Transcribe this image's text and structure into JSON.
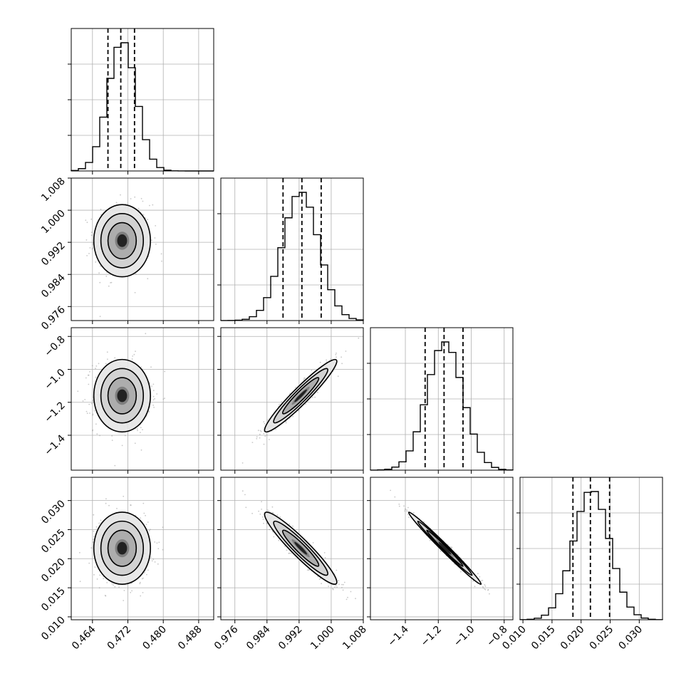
{
  "chart_data": {
    "type": "corner",
    "parameters": [
      {
        "index": 0,
        "mean": 0.4707,
        "std": 0.0032,
        "lim": [
          0.4592,
          0.4914
        ],
        "ticks": [
          "0.464",
          "0.472",
          "0.480",
          "0.488"
        ],
        "quantiles": [
          0.4675,
          0.4704,
          0.4735
        ]
      },
      {
        "index": 1,
        "mean": 0.9924,
        "std": 0.0045,
        "lim": [
          0.9725,
          1.008
        ],
        "ticks": [
          "0.976",
          "0.984",
          "0.992",
          "1.000",
          "1.008"
        ],
        "quantiles": [
          0.988,
          0.9927,
          0.9975
        ]
      },
      {
        "index": 2,
        "mean": -1.16,
        "std": 0.11,
        "lim": [
          -1.612,
          -0.747
        ],
        "ticks": [
          "−1.4",
          "−1.2",
          "−1.0",
          "−0.8"
        ],
        "quantiles": [
          -1.28,
          -1.165,
          -1.05
        ]
      },
      {
        "index": 3,
        "mean": 0.0218,
        "std": 0.0031,
        "lim": [
          0.0095,
          0.034
        ],
        "ticks": [
          "0.010",
          "0.015",
          "0.020",
          "0.025",
          "0.030"
        ],
        "quantiles": [
          0.0186,
          0.0216,
          0.0249
        ]
      }
    ],
    "correlations": [
      [
        0,
        1,
        0.0
      ],
      [
        0,
        2,
        0.0
      ],
      [
        1,
        2,
        0.95
      ],
      [
        0,
        3,
        0.0
      ],
      [
        1,
        3,
        -0.94
      ],
      [
        2,
        3,
        -0.99
      ]
    ],
    "bins": 20,
    "contour_levels": [
      0.5,
      1.0,
      1.5,
      2.0
    ],
    "grid": true
  }
}
